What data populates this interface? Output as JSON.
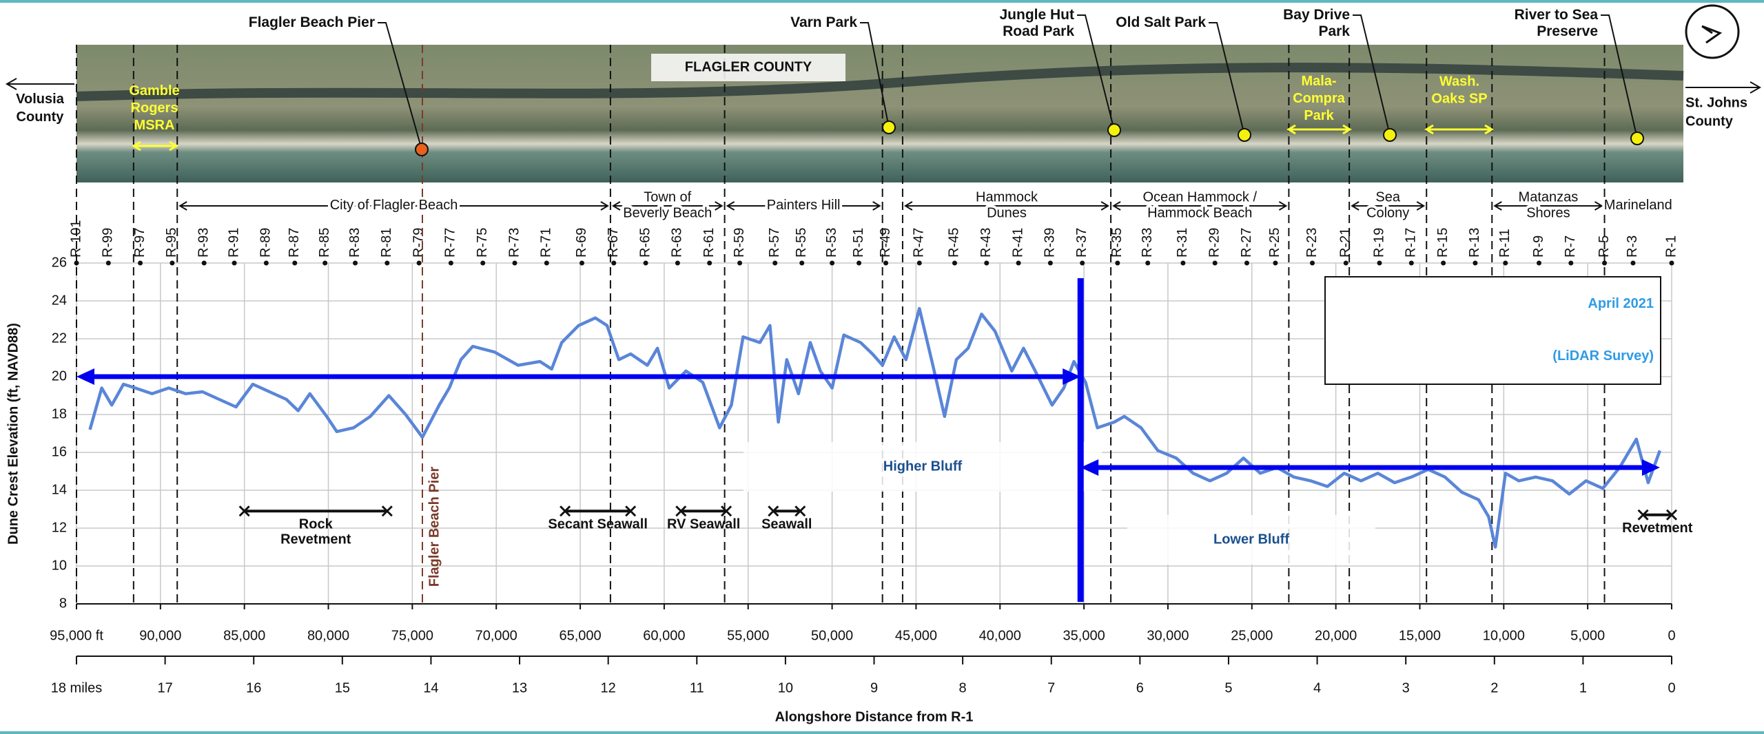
{
  "chart_data": {
    "type": "line",
    "y_label": "Dune Crest Elevation (ft, NAVD88)",
    "x_label": "Alongshore Distance from R-1",
    "survey_label": [
      "April 2021",
      "(LiDAR Survey)"
    ],
    "color": "#5a86d8",
    "grid": true,
    "xlim": [
      95000,
      0
    ],
    "ylim": [
      8,
      26
    ],
    "x2lim": [
      18,
      0
    ],
    "yticks": [
      8,
      10,
      12,
      14,
      16,
      18,
      20,
      22,
      24,
      26
    ],
    "xticks": [
      {
        "value": 95000,
        "label": "95,000 ft"
      },
      {
        "value": 90000,
        "label": "90,000"
      },
      {
        "value": 85000,
        "label": "85,000"
      },
      {
        "value": 80000,
        "label": "80,000"
      },
      {
        "value": 75000,
        "label": "75,000"
      },
      {
        "value": 70000,
        "label": "70,000"
      },
      {
        "value": 65000,
        "label": "65,000"
      },
      {
        "value": 60000,
        "label": "60,000"
      },
      {
        "value": 55000,
        "label": "55,000"
      },
      {
        "value": 50000,
        "label": "50,000"
      },
      {
        "value": 45000,
        "label": "45,000"
      },
      {
        "value": 40000,
        "label": "40,000"
      },
      {
        "value": 35000,
        "label": "35,000"
      },
      {
        "value": 30000,
        "label": "30,000"
      },
      {
        "value": 25000,
        "label": "25,000"
      },
      {
        "value": 20000,
        "label": "20,000"
      },
      {
        "value": 15000,
        "label": "15,000"
      },
      {
        "value": 10000,
        "label": "10,000"
      },
      {
        "value": 5000,
        "label": "5,000"
      },
      0
    ],
    "x2ticks": [
      {
        "value": 18,
        "label": "18 miles"
      },
      17,
      16,
      15,
      14,
      13,
      12,
      11,
      10,
      9,
      8,
      7,
      6,
      5,
      4,
      3,
      2,
      1,
      0
    ],
    "monument_ticks": [
      {
        "value": 95000,
        "label": "R-101"
      },
      {
        "value": 93100,
        "label": "R-99"
      },
      {
        "value": 91200,
        "label": "R-97"
      },
      {
        "value": 89300,
        "label": "R-95"
      },
      {
        "value": 87400,
        "label": "R-93"
      },
      {
        "value": 85600,
        "label": "R-91"
      },
      {
        "value": 83700,
        "label": "R-89"
      },
      {
        "value": 82000,
        "label": "R-87"
      },
      {
        "value": 80200,
        "label": "R-85"
      },
      {
        "value": 78400,
        "label": "R-83"
      },
      {
        "value": 76500,
        "label": "R-81"
      },
      {
        "value": 74600,
        "label": "R-79"
      },
      {
        "value": 72700,
        "label": "R-77"
      },
      {
        "value": 70800,
        "label": "R-75"
      },
      {
        "value": 68900,
        "label": "R-73"
      },
      {
        "value": 67000,
        "label": "R-71"
      },
      {
        "value": 64900,
        "label": "R-69"
      },
      {
        "value": 63000,
        "label": "R-67"
      },
      {
        "value": 61100,
        "label": "R-65"
      },
      {
        "value": 59200,
        "label": "R-63"
      },
      {
        "value": 57300,
        "label": "R-61"
      },
      {
        "value": 55500,
        "label": "R-59"
      },
      {
        "value": 53400,
        "label": "R-57"
      },
      {
        "value": 51800,
        "label": "R-55"
      },
      {
        "value": 50000,
        "label": "R-53"
      },
      {
        "value": 48400,
        "label": "R-51"
      },
      {
        "value": 46800,
        "label": "R-49"
      },
      {
        "value": 44800,
        "label": "R-47"
      },
      {
        "value": 42700,
        "label": "R-45"
      },
      {
        "value": 40800,
        "label": "R-43"
      },
      {
        "value": 38900,
        "label": "R-41"
      },
      {
        "value": 37000,
        "label": "R-39"
      },
      {
        "value": 35100,
        "label": "R-37"
      },
      {
        "value": 33000,
        "label": "R-35"
      },
      {
        "value": 31200,
        "label": "R-33"
      },
      {
        "value": 29100,
        "label": "R-31"
      },
      {
        "value": 27200,
        "label": "R-29"
      },
      {
        "value": 25300,
        "label": "R-27"
      },
      {
        "value": 23600,
        "label": "R-25"
      },
      {
        "value": 21400,
        "label": "R-23"
      },
      {
        "value": 19400,
        "label": "R-21"
      },
      {
        "value": 17400,
        "label": "R-19"
      },
      {
        "value": 15500,
        "label": "R-17"
      },
      {
        "value": 13600,
        "label": "R-15"
      },
      {
        "value": 11700,
        "label": "R-13"
      },
      {
        "value": 9900,
        "label": "R-11"
      },
      {
        "value": 7900,
        "label": "R-9"
      },
      {
        "value": 6000,
        "label": "R-7"
      },
      {
        "value": 4000,
        "label": "R-5"
      },
      {
        "value": 2300,
        "label": "R-3"
      },
      {
        "value": 0,
        "label": "R-1"
      }
    ],
    "x": [
      94200,
      93500,
      92900,
      92200,
      91500,
      90500,
      89500,
      88500,
      87500,
      86500,
      85500,
      84500,
      83500,
      82500,
      81800,
      81100,
      80100,
      79500,
      78500,
      77500,
      76400,
      75400,
      74400,
      73400,
      72800,
      72100,
      71400,
      70100,
      68700,
      67400,
      66700,
      66100,
      65100,
      64100,
      63400,
      62700,
      62000,
      61000,
      60400,
      59700,
      58700,
      57700,
      56700,
      56000,
      55300,
      54300,
      53700,
      53200,
      52700,
      52000,
      51300,
      50700,
      50000,
      49300,
      48300,
      47600,
      47000,
      46300,
      45600,
      44800,
      44000,
      43300,
      42600,
      41900,
      41100,
      40300,
      39300,
      38600,
      37900,
      36900,
      36200,
      35600,
      34900,
      34200,
      33200,
      32600,
      31600,
      30600,
      29500,
      28500,
      27500,
      26500,
      25500,
      24500,
      23500,
      22500,
      21500,
      20500,
      19500,
      18500,
      17500,
      16500,
      15500,
      14500,
      13500,
      12500,
      11500,
      10900,
      10500,
      9900,
      9100,
      8100,
      7100,
      6100,
      5100,
      4100,
      3100,
      2100,
      1400,
      700
    ],
    "values": [
      17.2,
      19.4,
      18.5,
      19.6,
      19.4,
      19.1,
      19.4,
      19.1,
      19.2,
      18.8,
      18.4,
      19.6,
      19.2,
      18.8,
      18.2,
      19.1,
      17.9,
      17.1,
      17.3,
      17.9,
      19.0,
      18.0,
      16.8,
      18.5,
      19.4,
      20.9,
      21.6,
      21.3,
      20.6,
      20.8,
      20.4,
      21.8,
      22.7,
      23.1,
      22.7,
      20.9,
      21.2,
      20.6,
      21.5,
      19.4,
      20.3,
      19.7,
      17.3,
      18.5,
      22.1,
      21.8,
      22.7,
      17.6,
      20.9,
      19.1,
      21.8,
      20.3,
      19.4,
      22.2,
      21.8,
      21.2,
      20.6,
      22.1,
      20.9,
      23.6,
      20.6,
      17.9,
      20.9,
      21.5,
      23.3,
      22.4,
      20.3,
      21.5,
      20.3,
      18.5,
      19.4,
      20.8,
      19.7,
      17.3,
      17.6,
      17.9,
      17.3,
      16.1,
      15.7,
      14.9,
      14.5,
      14.9,
      15.7,
      14.9,
      15.2,
      14.7,
      14.5,
      14.2,
      14.9,
      14.5,
      14.9,
      14.4,
      14.7,
      15.1,
      14.7,
      13.9,
      13.5,
      12.6,
      11.0,
      14.9,
      14.5,
      14.7,
      14.5,
      13.8,
      14.5,
      14.1,
      15.2,
      16.7,
      14.4,
      16.1
    ],
    "boundaries": [
      95000,
      91600,
      89000,
      63200,
      56400,
      47000,
      45800,
      33400,
      22800,
      19200,
      14600,
      10700,
      4000
    ],
    "pier_line": {
      "label": "Flagler Beach Pier",
      "x": 74400
    },
    "regions": [
      {
        "name": [
          "City of Flagler Beach"
        ],
        "x": [
          89000,
          63200
        ]
      },
      {
        "name": [
          "Town of",
          "Beverly Beach"
        ],
        "x": [
          63200,
          56400
        ]
      },
      {
        "name": [
          "Painters Hill"
        ],
        "x": [
          56400,
          47000
        ]
      },
      {
        "name": [
          "Hammock",
          "Dunes"
        ],
        "x": [
          45800,
          33400
        ]
      },
      {
        "name": [
          "Ocean Hammock /",
          "Hammock Beach"
        ],
        "x": [
          33400,
          22800
        ]
      },
      {
        "name": [
          "Sea",
          "Colony"
        ],
        "x": [
          19200,
          14600
        ]
      },
      {
        "name": [
          "Matanzas",
          "Shores"
        ],
        "x": [
          10700,
          4000
        ]
      },
      {
        "name": [
          "Marineland"
        ],
        "x": [
          4000,
          0
        ]
      }
    ],
    "structures": [
      {
        "name": [
          "Rock",
          "Revetment"
        ],
        "x": [
          85000,
          76500
        ],
        "y": 12.9
      },
      {
        "name": [
          "Secant Seawall"
        ],
        "x": [
          65900,
          62000
        ],
        "y": 12.9
      },
      {
        "name": [
          "RV Seawall"
        ],
        "x": [
          59000,
          56300
        ],
        "y": 12.9
      },
      {
        "name": [
          "Seawall"
        ],
        "x": [
          53500,
          51900
        ],
        "y": 12.9
      },
      {
        "name": [
          "Revetment"
        ],
        "x": [
          1700,
          0
        ],
        "y": 12.7
      }
    ],
    "bluffs": [
      {
        "label": "Higher Bluff",
        "x": [
          95000,
          35200
        ],
        "y": 20
      },
      {
        "label": "Lower Bluff",
        "x": [
          35200,
          700
        ],
        "y": 15.2
      }
    ],
    "bluff_color": "#0000f0",
    "divider": {
      "x": 35200,
      "y": [
        8.1,
        25.2
      ]
    }
  },
  "map": {
    "county": "FLAGLER COUNTY",
    "left": [
      "Volusia",
      "County"
    ],
    "right": [
      "St. Johns",
      "County"
    ],
    "areas": [
      [
        "Gamble",
        "Rogers",
        "MSRA"
      ],
      [
        "Mala-",
        "Compra",
        "Park"
      ],
      [
        "Wash.",
        "Oaks SP"
      ]
    ],
    "places": [
      {
        "name": [
          "Flagler Beach Pier"
        ],
        "color": "#e8621d"
      },
      {
        "name": [
          "Varn Park"
        ],
        "color": "#f4f20c"
      },
      {
        "name": [
          "Jungle Hut",
          "Road Park"
        ],
        "color": "#f4f20c"
      },
      {
        "name": [
          "Old Salt Park"
        ],
        "color": "#f4f20c"
      },
      {
        "name": [
          "Bay Drive",
          "Park"
        ],
        "color": "#f4f20c"
      },
      {
        "name": [
          "River to Sea",
          "Preserve"
        ],
        "color": "#f4f20c"
      }
    ]
  }
}
